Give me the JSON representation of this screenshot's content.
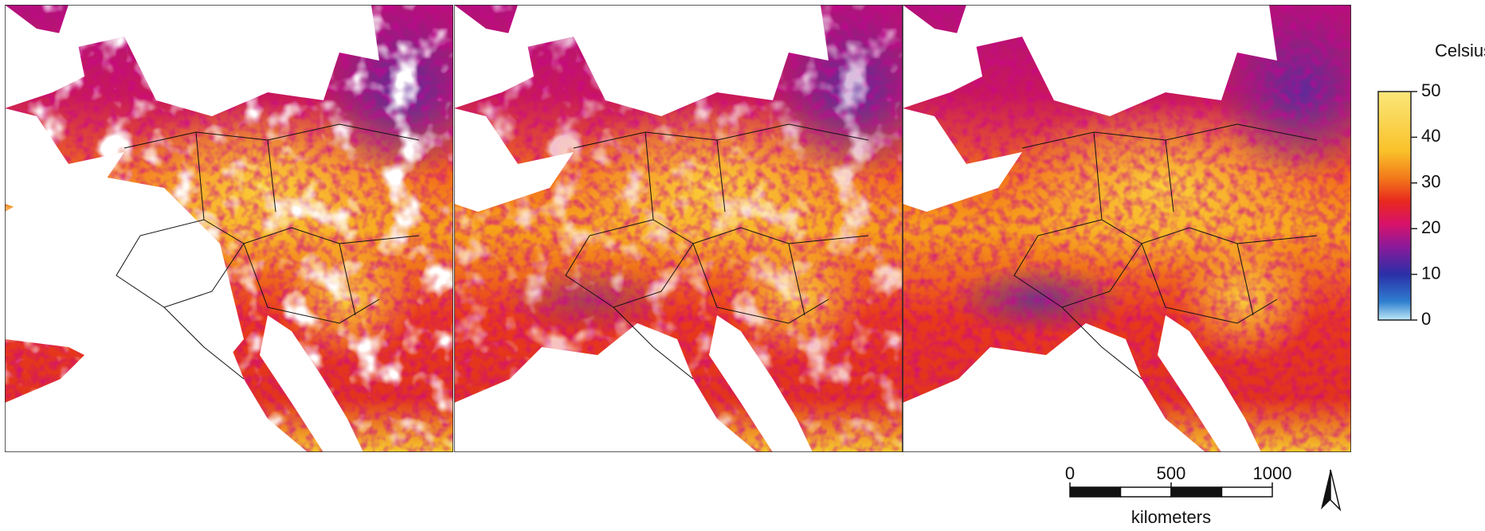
{
  "legend": {
    "title": "Celsius",
    "lim": [
      0,
      50
    ],
    "ticks": [
      0,
      10,
      20,
      30,
      40,
      50
    ]
  },
  "scale_bar": {
    "lim": [
      0,
      1000
    ],
    "ticks": [
      0,
      500,
      1000
    ],
    "unit": "kilometers"
  }
}
